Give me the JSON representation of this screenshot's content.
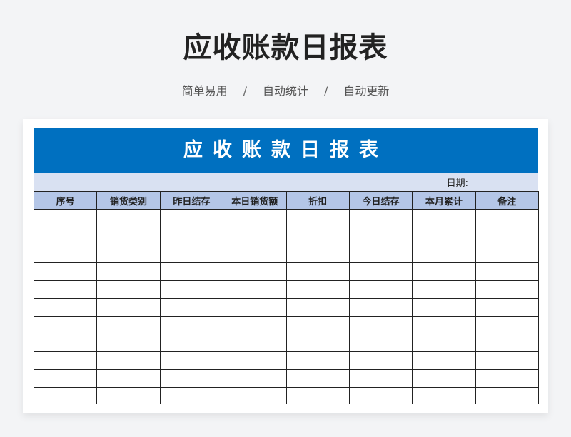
{
  "page": {
    "title": "应收账款日报表",
    "features": [
      "简单易用",
      "自动统计",
      "自动更新"
    ],
    "separator": "/"
  },
  "sheet": {
    "banner_title": "应收账款日报表",
    "date_label": "日期:",
    "columns": [
      "序号",
      "销货类别",
      "昨日结存",
      "本日销货额",
      "折扣",
      "今日结存",
      "本月累计",
      "备注"
    ],
    "row_count_visible": 11,
    "colors": {
      "banner": "#0070c0",
      "date_row": "#d9e1f2",
      "header": "#b4c6e7"
    }
  }
}
